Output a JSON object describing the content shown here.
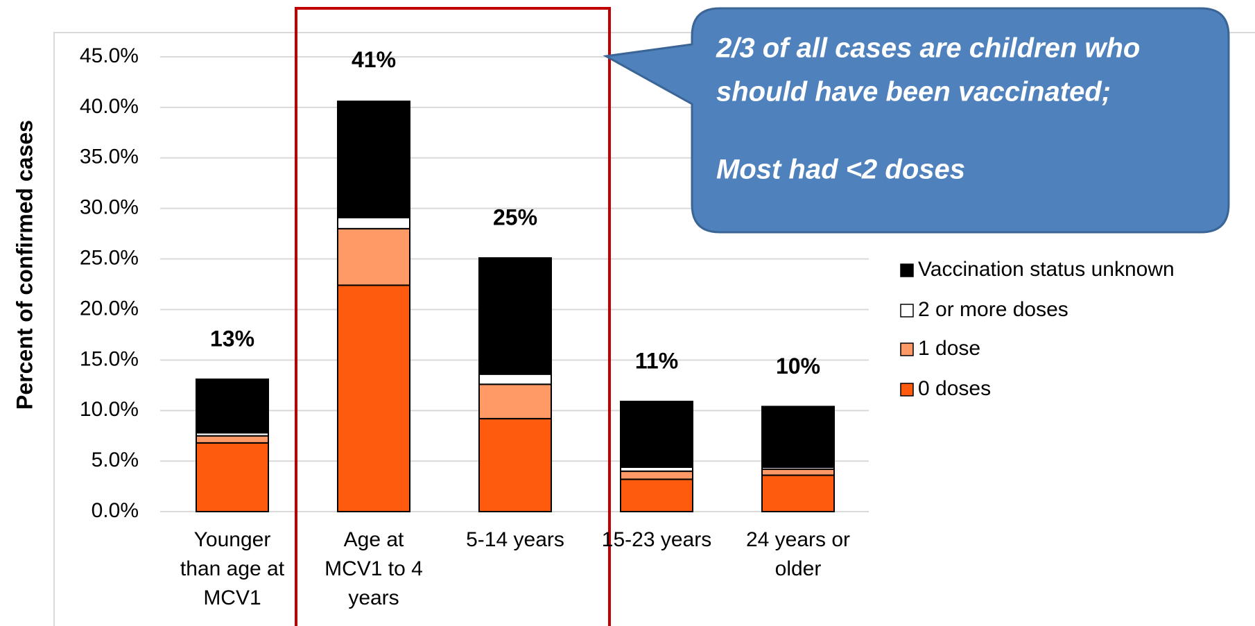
{
  "chart_data": {
    "type": "stacked_bar",
    "y_axis_label": "Percent of confirmed cases",
    "categories": [
      "Younger than age at MCV1",
      "Age at MCV1 to 4 years",
      "5-14 years",
      "15-23 years",
      "24 years or older"
    ],
    "series": [
      {
        "name": "0 doses",
        "color": "#ff5b0f",
        "values": [
          6.8,
          22.4,
          9.2,
          3.2,
          3.6
        ]
      },
      {
        "name": "1 dose",
        "color": "#ff9966",
        "values": [
          0.7,
          5.6,
          3.4,
          0.8,
          0.6
        ]
      },
      {
        "name": "2 or more doses",
        "color": "#ffffff",
        "values": [
          0.3,
          1.1,
          1.0,
          0.4,
          0.2
        ]
      },
      {
        "name": "Vaccination status unknown",
        "color": "#000000",
        "values": [
          5.3,
          11.5,
          11.5,
          6.5,
          6.0
        ]
      }
    ],
    "total_values": [
      13.1,
      40.7,
      25.1,
      10.9,
      10.4
    ],
    "total_labels": [
      "13%",
      "41%",
      "25%",
      "11%",
      "10%"
    ],
    "ylim": [
      0,
      45
    ],
    "yticks": [
      {
        "value": 0,
        "label": "0.0%"
      },
      {
        "value": 5,
        "label": "5.0%"
      },
      {
        "value": 10,
        "label": "10.0%"
      },
      {
        "value": 15,
        "label": "15.0%"
      },
      {
        "value": 20,
        "label": "20.0%"
      },
      {
        "value": 25,
        "label": "25.0%"
      },
      {
        "value": 30,
        "label": "30.0%"
      },
      {
        "value": 35,
        "label": "35.0%"
      },
      {
        "value": 40,
        "label": "40.0%"
      },
      {
        "value": 45,
        "label": "45.0%"
      }
    ],
    "grid": true,
    "legend_position": "right",
    "callout": [
      "2/3 of all cases are children who",
      "should have been vaccinated;",
      "Most had <2 doses"
    ]
  }
}
